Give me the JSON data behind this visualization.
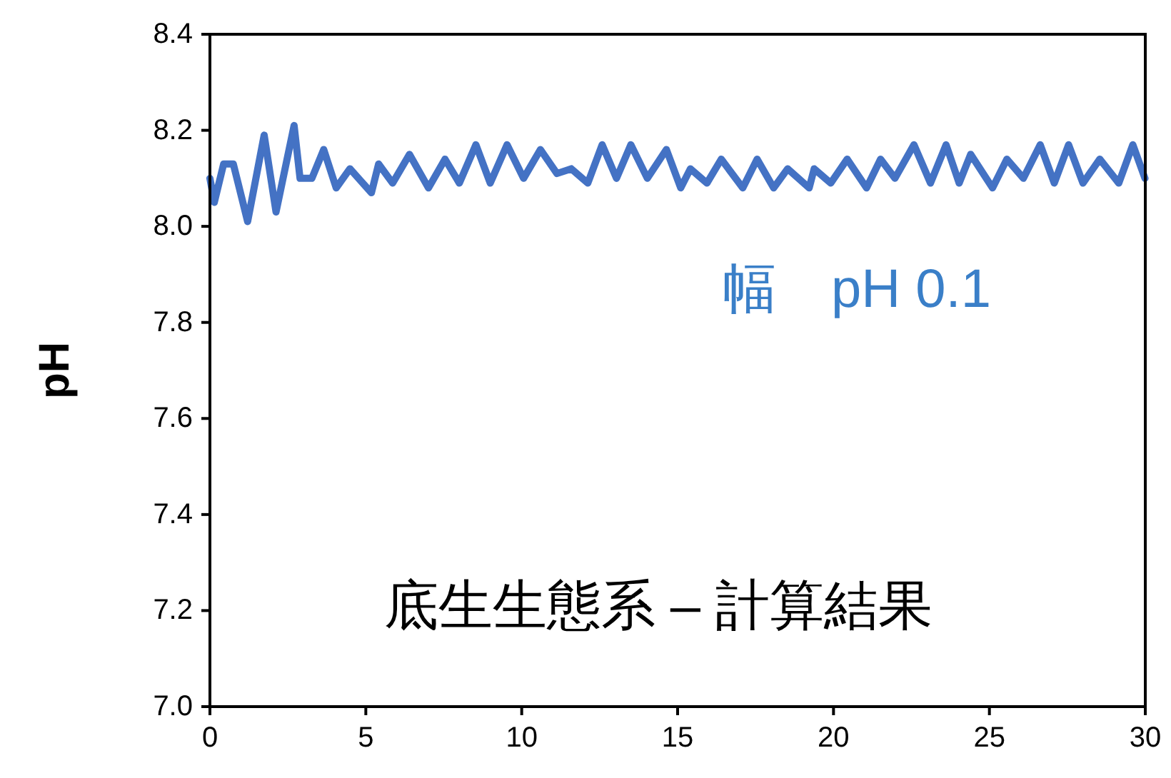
{
  "chart_data": {
    "type": "line",
    "x": [
      0,
      0.14,
      0.44,
      0.75,
      1.21,
      1.74,
      2.12,
      2.7,
      2.89,
      3.27,
      3.65,
      4.05,
      4.49,
      5.18,
      5.41,
      5.86,
      6.4,
      7.01,
      7.54,
      8.0,
      8.53,
      8.99,
      9.53,
      10.06,
      10.6,
      11.13,
      11.59,
      12.12,
      12.58,
      13.04,
      13.5,
      14.03,
      14.64,
      15.1,
      15.41,
      15.94,
      16.4,
      17.09,
      17.55,
      18.08,
      18.53,
      19.22,
      19.38,
      19.91,
      20.44,
      21.06,
      21.51,
      21.97,
      22.58,
      23.11,
      23.61,
      24.03,
      24.4,
      25.1,
      25.56,
      26.09,
      26.63,
      27.08,
      27.54,
      28.0,
      28.54,
      29.15,
      29.6,
      29.99
    ],
    "series": [
      {
        "color": "#4472c4",
        "values": [
          8.1,
          8.05,
          8.13,
          8.13,
          8.01,
          8.19,
          8.03,
          8.21,
          8.1,
          8.1,
          8.16,
          8.08,
          8.12,
          8.07,
          8.13,
          8.09,
          8.15,
          8.08,
          8.14,
          8.09,
          8.17,
          8.09,
          8.17,
          8.1,
          8.16,
          8.11,
          8.12,
          8.09,
          8.17,
          8.1,
          8.17,
          8.1,
          8.16,
          8.08,
          8.12,
          8.09,
          8.14,
          8.08,
          8.14,
          8.08,
          8.12,
          8.08,
          8.12,
          8.09,
          8.14,
          8.08,
          8.14,
          8.1,
          8.17,
          8.09,
          8.17,
          8.09,
          8.15,
          8.08,
          8.14,
          8.1,
          8.17,
          8.09,
          8.17,
          8.09,
          8.14,
          8.09,
          8.17,
          8.1
        ]
      }
    ],
    "ylabel": "pH",
    "annotations": [
      "幅　pH 0.1",
      "底生生態系 – 計算結果"
    ],
    "xlim": [
      0,
      30
    ],
    "xticks": [
      0,
      5,
      10,
      15,
      20,
      25,
      30
    ],
    "ylim": [
      7.0,
      8.4
    ],
    "yticks": [
      {
        "value": 7.0,
        "label": "7.0"
      },
      {
        "value": 7.2,
        "label": "7.2"
      },
      {
        "value": 7.4,
        "label": "7.4"
      },
      {
        "value": 7.6,
        "label": "7.6"
      },
      {
        "value": 7.8,
        "label": "7.8"
      },
      {
        "value": 8.0,
        "label": "8.0"
      },
      {
        "value": 8.2,
        "label": "8.2"
      },
      {
        "value": 8.4,
        "label": "8.4"
      }
    ],
    "grid": false,
    "marker": "none",
    "line_style": "solid"
  }
}
